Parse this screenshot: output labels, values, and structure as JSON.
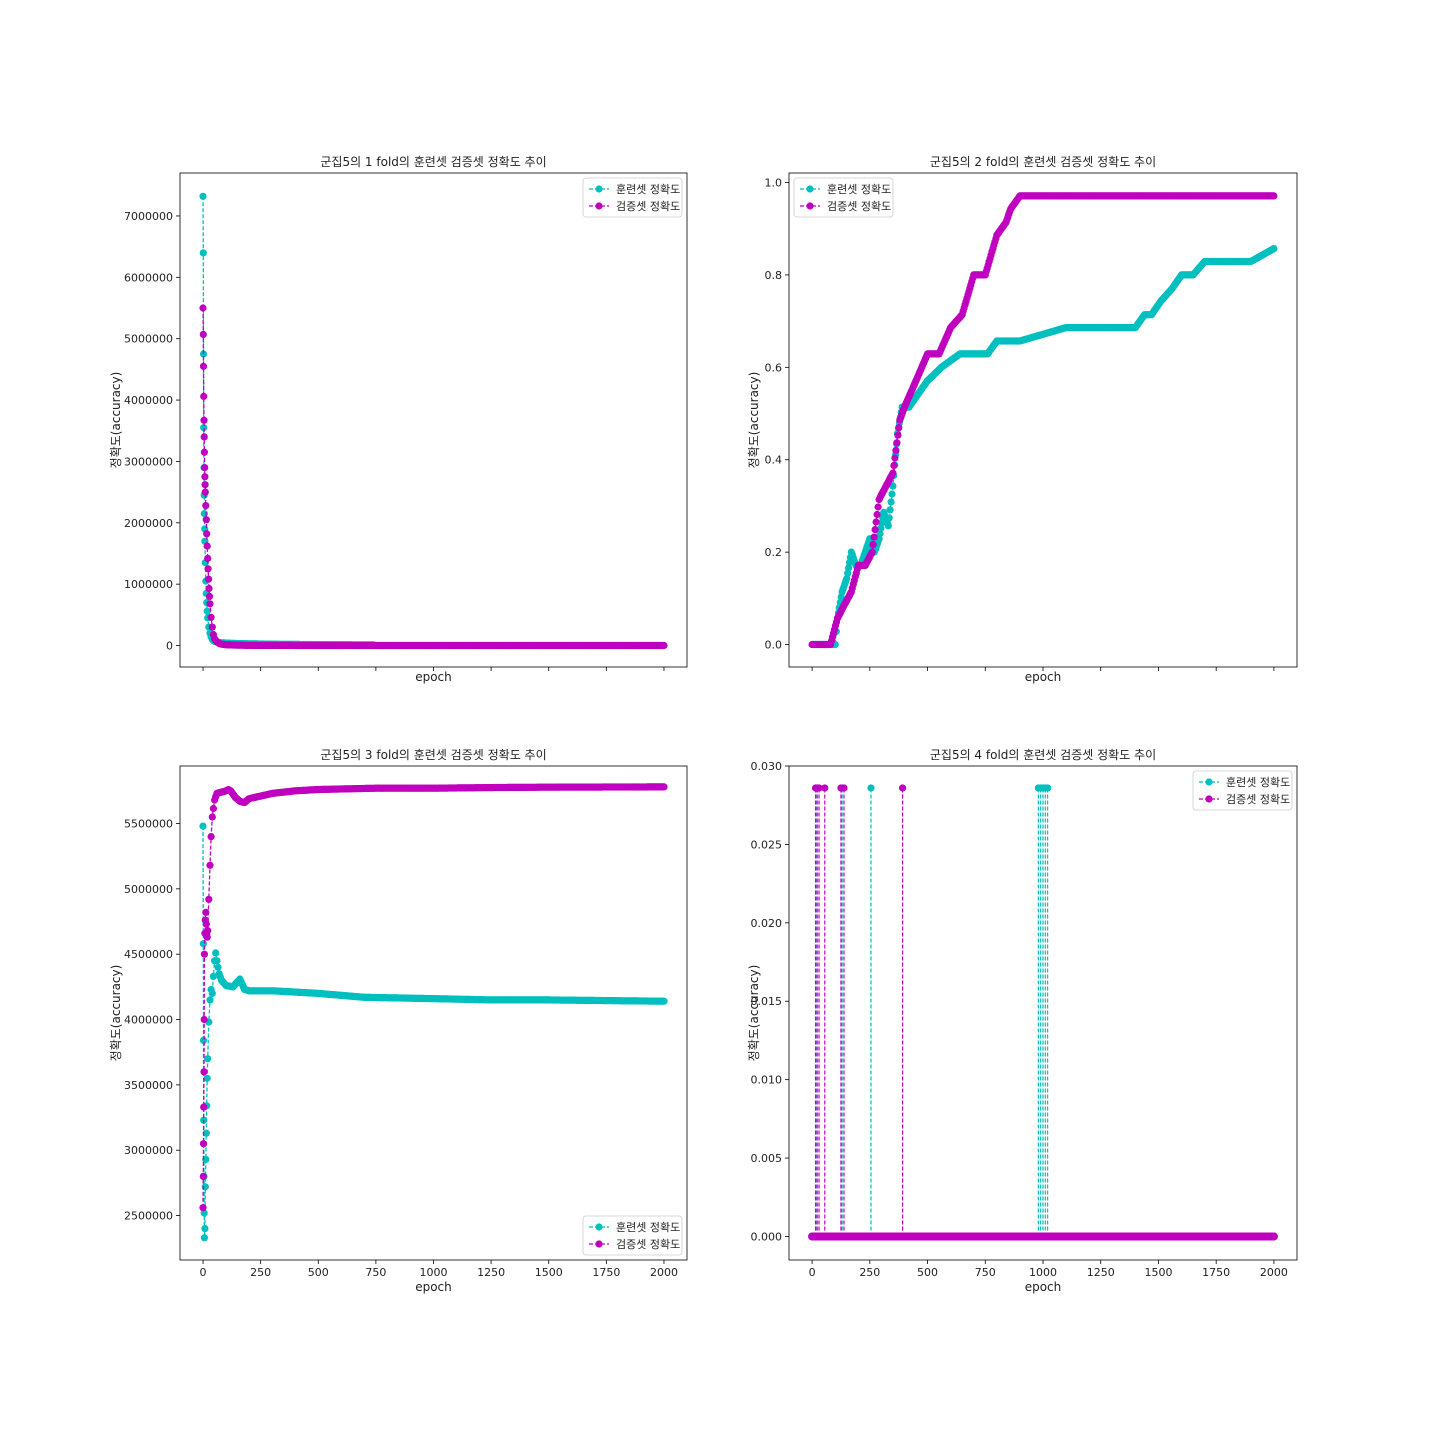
{
  "chart_data": [
    {
      "type": "line",
      "title": "군집5의 1 fold의 훈련셋 검증셋 정확도 추이",
      "xlabel": "epoch",
      "ylabel": "정확도(accuracy)",
      "xlim": [
        -100,
        2100
      ],
      "ylim": [
        -350000,
        7700000
      ],
      "show_xtick_labels": false,
      "xticks": [
        0,
        250,
        500,
        750,
        1000,
        1250,
        1500,
        1750,
        2000
      ],
      "yticks": [
        0,
        1000000,
        2000000,
        3000000,
        4000000,
        5000000,
        6000000,
        7000000
      ],
      "ytick_labels": [
        "0",
        "1000000",
        "2000000",
        "3000000",
        "4000000",
        "5000000",
        "6000000",
        "7000000"
      ],
      "legend": "top-right",
      "series": [
        {
          "name": "훈련셋 정확도",
          "color": "#00bfbf",
          "x": [
            0,
            1,
            2,
            3,
            4,
            5,
            6,
            7,
            8,
            10,
            12,
            14,
            16,
            18,
            20,
            25,
            30,
            35,
            40,
            45,
            50,
            60,
            70,
            80,
            100,
            150,
            200,
            300,
            400,
            500,
            600,
            700,
            740
          ],
          "y": [
            7320000,
            6400000,
            4750000,
            3550000,
            2900000,
            2450000,
            2150000,
            1900000,
            1700000,
            1350000,
            1050000,
            850000,
            700000,
            560000,
            450000,
            300000,
            200000,
            140000,
            100000,
            80000,
            65000,
            55000,
            50000,
            45000,
            40000,
            32000,
            28000,
            22000,
            18000,
            15000,
            13000,
            12000,
            11000
          ]
        },
        {
          "name": "검증셋 정확도",
          "color": "#bf00bf",
          "x": [
            0,
            1,
            2,
            3,
            4,
            5,
            6,
            7,
            8,
            9,
            10,
            12,
            14,
            16,
            18,
            20,
            22,
            24,
            26,
            28,
            30,
            35,
            40,
            45,
            50,
            60,
            70,
            80,
            100,
            150,
            200,
            300,
            500,
            800,
            1200,
            1600,
            2000
          ],
          "y": [
            5500000,
            5070000,
            4550000,
            4060000,
            3670000,
            3400000,
            3150000,
            2900000,
            2750000,
            2620000,
            2500000,
            2280000,
            2050000,
            1820000,
            1620000,
            1420000,
            1250000,
            1080000,
            930000,
            800000,
            680000,
            460000,
            300000,
            180000,
            110000,
            60000,
            35000,
            22000,
            12000,
            6000,
            3000,
            1500,
            800,
            500,
            300,
            200,
            100
          ]
        }
      ]
    },
    {
      "type": "line",
      "title": "군집5의 2 fold의 훈련셋 검증셋 정확도 추이",
      "xlabel": "epoch",
      "ylabel": "정확도(accuracy)",
      "xlim": [
        -100,
        2100
      ],
      "ylim": [
        -0.0486,
        1.0206
      ],
      "show_xtick_labels": false,
      "xticks": [
        0,
        250,
        500,
        750,
        1000,
        1250,
        1500,
        1750,
        2000
      ],
      "yticks": [
        0.0,
        0.2,
        0.4,
        0.6,
        0.8,
        1.0
      ],
      "ytick_labels": [
        "0.0",
        "0.2",
        "0.4",
        "0.6",
        "0.8",
        "1.0"
      ],
      "legend": "top-left",
      "series": [
        {
          "name": "훈련셋 정확도",
          "color": "#00bfbf",
          "x": [
            0,
            100,
            110,
            130,
            150,
            170,
            190,
            210,
            230,
            250,
            270,
            290,
            310,
            330,
            350,
            370,
            390,
            420,
            460,
            500,
            560,
            640,
            700,
            760,
            800,
            900,
            1100,
            1300,
            1400,
            1440,
            1470,
            1510,
            1560,
            1600,
            1650,
            1700,
            1800,
            1900,
            2000
          ],
          "y": [
            0.0,
            0.0,
            0.057,
            0.114,
            0.143,
            0.2,
            0.171,
            0.171,
            0.2,
            0.229,
            0.2,
            0.229,
            0.286,
            0.257,
            0.343,
            0.457,
            0.514,
            0.514,
            0.543,
            0.571,
            0.6,
            0.629,
            0.629,
            0.629,
            0.657,
            0.657,
            0.686,
            0.686,
            0.686,
            0.714,
            0.714,
            0.743,
            0.771,
            0.8,
            0.8,
            0.829,
            0.829,
            0.829,
            0.857
          ]
        },
        {
          "name": "검증셋 정확도",
          "color": "#bf00bf",
          "x": [
            0,
            80,
            110,
            140,
            170,
            200,
            230,
            260,
            290,
            320,
            350,
            380,
            400,
            450,
            500,
            550,
            600,
            650,
            700,
            750,
            800,
            840,
            860,
            900,
            1000,
            1500,
            2000
          ],
          "y": [
            0.0,
            0.0,
            0.057,
            0.086,
            0.114,
            0.171,
            0.171,
            0.2,
            0.314,
            0.343,
            0.371,
            0.486,
            0.514,
            0.571,
            0.629,
            0.629,
            0.686,
            0.714,
            0.8,
            0.8,
            0.886,
            0.914,
            0.943,
            0.971,
            0.971,
            0.971,
            0.971
          ]
        }
      ]
    },
    {
      "type": "line",
      "title": "군집5의 3 fold의 훈련셋 검증셋 정확도 추이",
      "xlabel": "epoch",
      "ylabel": "정확도(accuracy)",
      "xlim": [
        -100,
        2100
      ],
      "ylim": [
        2160000,
        5940000
      ],
      "show_xtick_labels": true,
      "xticks": [
        0,
        250,
        500,
        750,
        1000,
        1250,
        1500,
        1750,
        2000
      ],
      "xtick_labels": [
        "0",
        "250",
        "500",
        "750",
        "1000",
        "1250",
        "1500",
        "1750",
        "2000"
      ],
      "yticks": [
        2500000,
        3000000,
        3500000,
        4000000,
        4500000,
        5000000,
        5500000
      ],
      "ytick_labels": [
        "2500000",
        "3000000",
        "3500000",
        "4000000",
        "4500000",
        "5000000",
        "5500000"
      ],
      "legend": "bottom-right",
      "series": [
        {
          "name": "훈련셋 정확도",
          "color": "#00bfbf",
          "x": [
            0,
            1,
            2,
            3,
            4,
            5,
            6,
            8,
            10,
            12,
            14,
            16,
            18,
            20,
            25,
            30,
            35,
            40,
            45,
            50,
            55,
            60,
            70,
            80,
            100,
            130,
            150,
            160,
            170,
            180,
            200,
            300,
            400,
            500,
            700,
            1000,
            1250,
            1500,
            1750,
            2000
          ],
          "y": [
            5480000,
            4580000,
            3840000,
            3230000,
            2800000,
            2520000,
            2330000,
            2400000,
            2720000,
            2930000,
            3130000,
            3340000,
            3550000,
            3700000,
            3980000,
            4150000,
            4230000,
            4200000,
            4330000,
            4450000,
            4510000,
            4450000,
            4350000,
            4300000,
            4260000,
            4250000,
            4290000,
            4310000,
            4270000,
            4230000,
            4220000,
            4220000,
            4210000,
            4200000,
            4170000,
            4160000,
            4150000,
            4150000,
            4145000,
            4140000
          ]
        },
        {
          "name": "검증셋 정확도",
          "color": "#bf00bf",
          "x": [
            0,
            1,
            2,
            3,
            4,
            5,
            6,
            8,
            10,
            12,
            14,
            16,
            18,
            20,
            25,
            30,
            35,
            40,
            50,
            60,
            80,
            100,
            110,
            120,
            140,
            160,
            180,
            200,
            250,
            300,
            400,
            500,
            750,
            1000,
            1250,
            1500,
            1750,
            2000
          ],
          "y": [
            2560000,
            2800000,
            3050000,
            3330000,
            3600000,
            4000000,
            4500000,
            4660000,
            4760000,
            4820000,
            4730000,
            4650000,
            4630000,
            4680000,
            4920000,
            5180000,
            5400000,
            5550000,
            5680000,
            5730000,
            5740000,
            5750000,
            5760000,
            5750000,
            5700000,
            5670000,
            5660000,
            5690000,
            5710000,
            5730000,
            5750000,
            5760000,
            5770000,
            5770000,
            5775000,
            5778000,
            5779000,
            5780000
          ]
        }
      ]
    },
    {
      "type": "line",
      "title": "군집5의 4 fold의 훈련셋 검증셋 정확도 추이",
      "xlabel": "epoch",
      "ylabel": "정확도(accuracy)",
      "xlim": [
        -100,
        2100
      ],
      "ylim": [
        -0.0015,
        0.03
      ],
      "show_xtick_labels": true,
      "xticks": [
        0,
        250,
        500,
        750,
        1000,
        1250,
        1500,
        1750,
        2000
      ],
      "xtick_labels": [
        "0",
        "250",
        "500",
        "750",
        "1000",
        "1250",
        "1500",
        "1750",
        "2000"
      ],
      "yticks": [
        0.0,
        0.005,
        0.01,
        0.015,
        0.02,
        0.025,
        0.03
      ],
      "ytick_labels": [
        "0.000",
        "0.005",
        "0.010",
        "0.015",
        "0.020",
        "0.025",
        "0.030"
      ],
      "legend": "top-right",
      "series": [
        {
          "name": "훈련셋 정확도",
          "color": "#00bfbf",
          "baseline": 0,
          "spike_x": [
            20,
            130,
            255,
            980,
            990,
            1000,
            1010,
            1020
          ],
          "spike_y": 0.0286
        },
        {
          "name": "검증셋 정확도",
          "color": "#bf00bf",
          "baseline": 0,
          "spike_x": [
            15,
            22,
            30,
            55,
            125,
            138,
            392
          ],
          "spike_y": 0.0286
        }
      ]
    }
  ]
}
